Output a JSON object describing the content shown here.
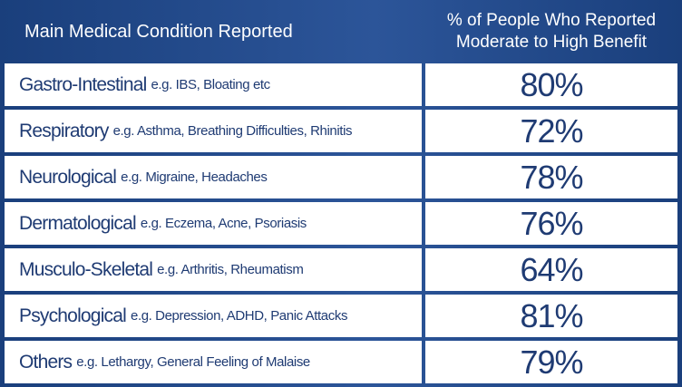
{
  "chart_data": {
    "type": "table",
    "columns": [
      "Main Medical Condition Reported",
      "% of People Who Reported Moderate to High Benefit"
    ],
    "header": {
      "condition_label": "Main Medical Condition Reported",
      "benefit_line1": "% of People Who Reported",
      "benefit_line2": "Moderate to High Benefit"
    },
    "rows": [
      {
        "condition": "Gastro-Intestinal",
        "examples": "e.g. IBS, Bloating etc",
        "value": 80,
        "value_label": "80%"
      },
      {
        "condition": "Respiratory",
        "examples": "e.g. Asthma, Breathing Difficulties, Rhinitis",
        "value": 72,
        "value_label": "72%"
      },
      {
        "condition": "Neurological",
        "examples": "e.g. Migraine, Headaches",
        "value": 78,
        "value_label": "78%"
      },
      {
        "condition": "Dermatological",
        "examples": "e.g. Eczema, Acne, Psoriasis",
        "value": 76,
        "value_label": "76%"
      },
      {
        "condition": "Musculo-Skeletal",
        "examples": "e.g. Arthritis, Rheumatism",
        "value": 64,
        "value_label": "64%"
      },
      {
        "condition": "Psychological",
        "examples": "e.g. Depression, ADHD, Panic Attacks",
        "value": 81,
        "value_label": "81%"
      },
      {
        "condition": "Others",
        "examples": "e.g. Lethargy, General Feeling of Malaise",
        "value": 79,
        "value_label": "79%"
      }
    ]
  },
  "colors": {
    "header_background": "#2c5599",
    "cell_background": "#ffffff",
    "text_dark_blue": "#1f3b73",
    "header_text": "#ffffff"
  }
}
